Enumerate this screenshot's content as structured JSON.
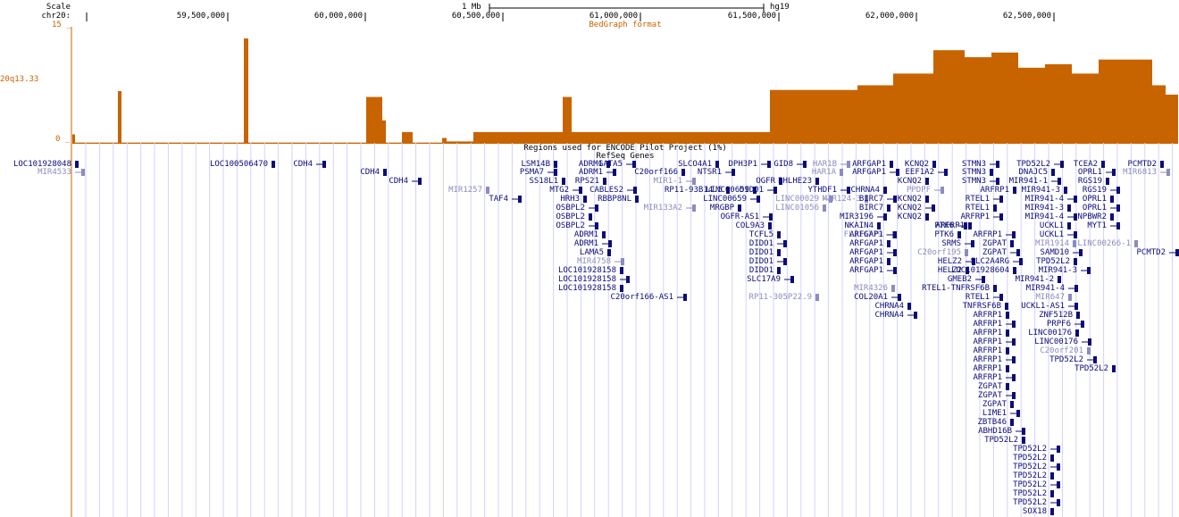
{
  "ruler": {
    "scale_label": "Scale",
    "chrom_label": "chr20:",
    "scale_bar_text": "1 Mb",
    "assembly": "hg19",
    "ticks": [
      "59,500,000",
      "60,000,000",
      "60,500,000",
      "61,000,000",
      "61,500,000",
      "62,000,000",
      "62,500,000"
    ]
  },
  "bedgraph": {
    "subtitle": "BedGraph format",
    "track_name": "20q13.33",
    "y_max_label": "15 _",
    "y_min_label": "0 _",
    "color": "#c86400"
  },
  "tracks": {
    "encode_title": "Regions used for ENCODE Pilot Project (1%)",
    "refseq_title": "RefSeq Genes",
    "gene_color": "#0c0c78",
    "noncoding_color": "#8c8cbe"
  },
  "genes": [
    {
      "name": "LOC101928048",
      "style": "dark"
    },
    {
      "name": "MIR4533",
      "style": "light"
    },
    {
      "name": "LOC100506470",
      "style": "dark"
    },
    {
      "name": "CDH4",
      "style": "dark"
    },
    {
      "name": "CDH4",
      "style": "dark"
    },
    {
      "name": "CDH4",
      "style": "dark"
    },
    {
      "name": "MIR1257",
      "style": "light"
    },
    {
      "name": "TAF4",
      "style": "dark"
    },
    {
      "name": "LSM14B",
      "style": "dark"
    },
    {
      "name": "PSMA7",
      "style": "dark"
    },
    {
      "name": "SS18L1",
      "style": "dark"
    },
    {
      "name": "MTG2",
      "style": "dark"
    },
    {
      "name": "HRH3",
      "style": "dark"
    },
    {
      "name": "OSBPL2",
      "style": "dark"
    },
    {
      "name": "OSBPL2",
      "style": "dark"
    },
    {
      "name": "OSBPL2",
      "style": "dark"
    },
    {
      "name": "ADRM1",
      "style": "dark"
    },
    {
      "name": "ADRM1",
      "style": "dark"
    },
    {
      "name": "LAMA5",
      "style": "dark"
    },
    {
      "name": "MIR4758",
      "style": "light"
    },
    {
      "name": "LOC101928158",
      "style": "dark"
    },
    {
      "name": "LOC101928158",
      "style": "dark"
    },
    {
      "name": "LOC101928158",
      "style": "dark"
    },
    {
      "name": "C20orf166-AS1",
      "style": "dark"
    },
    {
      "name": "ADRM1",
      "style": "dark"
    },
    {
      "name": "ADRM1",
      "style": "dark"
    },
    {
      "name": "RPS21",
      "style": "dark"
    },
    {
      "name": "CABLES2",
      "style": "dark"
    },
    {
      "name": "RBBP8NL",
      "style": "dark"
    },
    {
      "name": "GATA5",
      "style": "dark"
    },
    {
      "name": "C20orf166",
      "style": "dark"
    },
    {
      "name": "MIR1-1",
      "style": "light"
    },
    {
      "name": "RP11-93B14.5",
      "style": "dark"
    },
    {
      "name": "MIR133A2",
      "style": "light"
    },
    {
      "name": "SLCO4A1",
      "style": "dark"
    },
    {
      "name": "NTSR1",
      "style": "dark"
    },
    {
      "name": "LINC00659",
      "style": "dark"
    },
    {
      "name": "LINC00659",
      "style": "dark"
    },
    {
      "name": "MRGBP",
      "style": "dark"
    },
    {
      "name": "OGFR-AS1",
      "style": "dark"
    },
    {
      "name": "COL9A3",
      "style": "dark"
    },
    {
      "name": "DPH3P1",
      "style": "dark"
    },
    {
      "name": "OGFR",
      "style": "dark"
    },
    {
      "name": "DIDO1",
      "style": "dark"
    },
    {
      "name": "TCFL5",
      "style": "dark"
    },
    {
      "name": "DIDO1",
      "style": "dark"
    },
    {
      "name": "DIDO1",
      "style": "dark"
    },
    {
      "name": "DIDO1",
      "style": "dark"
    },
    {
      "name": "DIDO1",
      "style": "dark"
    },
    {
      "name": "SLC17A9",
      "style": "dark"
    },
    {
      "name": "RP11-305P22.9",
      "style": "light"
    },
    {
      "name": "GID8",
      "style": "dark"
    },
    {
      "name": "BHLHE23",
      "style": "dark"
    },
    {
      "name": "LINC00029",
      "style": "light"
    },
    {
      "name": "LINC01056",
      "style": "light"
    },
    {
      "name": "HAR1B",
      "style": "light"
    },
    {
      "name": "HAR1A",
      "style": "light"
    },
    {
      "name": "YTHDF1",
      "style": "dark"
    },
    {
      "name": "MIR124-3",
      "style": "light"
    },
    {
      "name": "MIR3196",
      "style": "dark"
    },
    {
      "name": "NKAIN4",
      "style": "dark"
    },
    {
      "name": "FLJ16779",
      "style": "light"
    },
    {
      "name": "ARFGAP1",
      "style": "dark"
    },
    {
      "name": "ARFGAP1",
      "style": "dark"
    },
    {
      "name": "CHRNA4",
      "style": "dark"
    },
    {
      "name": "BIRC7",
      "style": "dark"
    },
    {
      "name": "BIRC7",
      "style": "dark"
    },
    {
      "name": "ARFGAP1",
      "style": "dark"
    },
    {
      "name": "ARFGAP1",
      "style": "dark"
    },
    {
      "name": "ARFGAP1",
      "style": "dark"
    },
    {
      "name": "ARFGAP1",
      "style": "dark"
    },
    {
      "name": "ARFGAP1",
      "style": "dark"
    },
    {
      "name": "MIR4326",
      "style": "light"
    },
    {
      "name": "COL20A1",
      "style": "dark"
    },
    {
      "name": "CHRNA4",
      "style": "dark"
    },
    {
      "name": "CHRNA4",
      "style": "dark"
    },
    {
      "name": "KCNQ2",
      "style": "dark"
    },
    {
      "name": "EEF1A2",
      "style": "dark"
    },
    {
      "name": "KCNQ2",
      "style": "dark"
    },
    {
      "name": "PPDPF",
      "style": "light"
    },
    {
      "name": "KCNQ2",
      "style": "dark"
    },
    {
      "name": "KCNQ2",
      "style": "dark"
    },
    {
      "name": "KCNQ2",
      "style": "dark"
    },
    {
      "name": "PTK6",
      "style": "dark"
    },
    {
      "name": "PTK6",
      "style": "dark"
    },
    {
      "name": "SRMS",
      "style": "dark"
    },
    {
      "name": "C20orf195",
      "style": "light"
    },
    {
      "name": "HELZ2",
      "style": "dark"
    },
    {
      "name": "HELZ2",
      "style": "dark"
    },
    {
      "name": "GMEB2",
      "style": "dark"
    },
    {
      "name": "RTEL1-TNFRSF6B",
      "style": "dark"
    },
    {
      "name": "RTEL1",
      "style": "dark"
    },
    {
      "name": "TNFRSF6B",
      "style": "dark"
    },
    {
      "name": "STMN3",
      "style": "dark"
    },
    {
      "name": "STMN3",
      "style": "dark"
    },
    {
      "name": "STMN3",
      "style": "dark"
    },
    {
      "name": "ARFRP1",
      "style": "dark"
    },
    {
      "name": "RTEL1",
      "style": "dark"
    },
    {
      "name": "RTEL1",
      "style": "dark"
    },
    {
      "name": "ARFRP1",
      "style": "dark"
    },
    {
      "name": "ARFRP1",
      "style": "dark"
    },
    {
      "name": "ARFRP1",
      "style": "dark"
    },
    {
      "name": "ARFRP1",
      "style": "dark"
    },
    {
      "name": "ARFRP1",
      "style": "dark"
    },
    {
      "name": "ARFRP1",
      "style": "dark"
    },
    {
      "name": "ARFRP1",
      "style": "dark"
    },
    {
      "name": "ARFRP1",
      "style": "dark"
    },
    {
      "name": "ARFRP1",
      "style": "dark"
    },
    {
      "name": "ARFRP1",
      "style": "dark"
    },
    {
      "name": "ARFRP1",
      "style": "dark"
    },
    {
      "name": "ZGPAT",
      "style": "dark"
    },
    {
      "name": "ZGPAT",
      "style": "dark"
    },
    {
      "name": "ZGPAT",
      "style": "dark"
    },
    {
      "name": "ZGPAT",
      "style": "dark"
    },
    {
      "name": "ZGPAT",
      "style": "dark"
    },
    {
      "name": "LIME1",
      "style": "dark"
    },
    {
      "name": "ZBTB46",
      "style": "dark"
    },
    {
      "name": "SLC2A4RG",
      "style": "dark"
    },
    {
      "name": "LOC101928604",
      "style": "dark"
    },
    {
      "name": "ABHD16B",
      "style": "dark"
    },
    {
      "name": "TPD52L2",
      "style": "dark"
    },
    {
      "name": "TPD52L2",
      "style": "dark"
    },
    {
      "name": "DNAJC5",
      "style": "dark"
    },
    {
      "name": "MIR941-1",
      "style": "dark"
    },
    {
      "name": "MIR941-3",
      "style": "dark"
    },
    {
      "name": "MIR941-4",
      "style": "dark"
    },
    {
      "name": "MIR941-3",
      "style": "dark"
    },
    {
      "name": "MIR941-4",
      "style": "dark"
    },
    {
      "name": "UCKL1",
      "style": "dark"
    },
    {
      "name": "UCKL1",
      "style": "dark"
    },
    {
      "name": "MIR1914",
      "style": "light"
    },
    {
      "name": "SAMD10",
      "style": "dark"
    },
    {
      "name": "TPD52L2",
      "style": "dark"
    },
    {
      "name": "MIR941-3",
      "style": "dark"
    },
    {
      "name": "MIR941-2",
      "style": "dark"
    },
    {
      "name": "MIR941-4",
      "style": "dark"
    },
    {
      "name": "MIR647",
      "style": "light"
    },
    {
      "name": "UCKL1-AS1",
      "style": "dark"
    },
    {
      "name": "ZNF512B",
      "style": "dark"
    },
    {
      "name": "PRPF6",
      "style": "dark"
    },
    {
      "name": "LINC00176",
      "style": "dark"
    },
    {
      "name": "LINC00176",
      "style": "dark"
    },
    {
      "name": "C20orf201",
      "style": "light"
    },
    {
      "name": "TPD52L2",
      "style": "dark"
    },
    {
      "name": "TPD52L2",
      "style": "dark"
    },
    {
      "name": "TPD52L2",
      "style": "dark"
    },
    {
      "name": "TPD52L2",
      "style": "dark"
    },
    {
      "name": "TPD52L2",
      "style": "dark"
    },
    {
      "name": "TPD52L2",
      "style": "dark"
    },
    {
      "name": "TPD52L2",
      "style": "dark"
    },
    {
      "name": "TPD52L2",
      "style": "dark"
    },
    {
      "name": "TPD52L2",
      "style": "dark"
    },
    {
      "name": "SOX18",
      "style": "dark"
    },
    {
      "name": "TCEA2",
      "style": "dark"
    },
    {
      "name": "TCEA2",
      "style": "dark"
    },
    {
      "name": "OPRL1",
      "style": "dark"
    },
    {
      "name": "RGS19",
      "style": "dark"
    },
    {
      "name": "RGS19",
      "style": "dark"
    },
    {
      "name": "OPRL1",
      "style": "dark"
    },
    {
      "name": "OPRL1",
      "style": "dark"
    },
    {
      "name": "NPBWR2",
      "style": "dark"
    },
    {
      "name": "MYT1",
      "style": "dark"
    },
    {
      "name": "LINC00266-1",
      "style": "light"
    },
    {
      "name": "PCMTD2",
      "style": "dark"
    },
    {
      "name": "PCMTD2",
      "style": "dark"
    },
    {
      "name": "MIR6813",
      "style": "light"
    }
  ]
}
